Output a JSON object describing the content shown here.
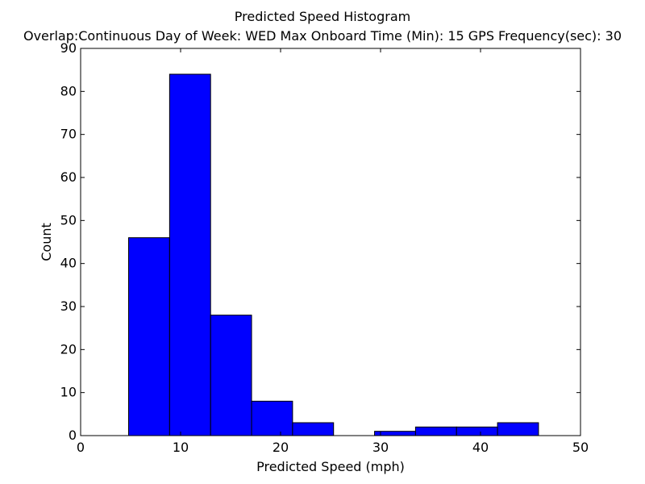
{
  "chart_data": {
    "type": "bar",
    "title": "Predicted Speed Histogram",
    "subtitle": "Overlap:Continuous    Day of Week: WED    Max Onboard Time (Min): 15    GPS Frequency(sec): 30",
    "xlabel": "Predicted Speed (mph)",
    "ylabel": "Count",
    "xlim": [
      0,
      50
    ],
    "ylim": [
      0,
      90
    ],
    "xticks": [
      0,
      10,
      20,
      30,
      40,
      50
    ],
    "yticks": [
      0,
      10,
      20,
      30,
      40,
      50,
      60,
      70,
      80,
      90
    ],
    "bin_edges": [
      4.8,
      8.9,
      13.0,
      17.1,
      21.2,
      25.3,
      29.4,
      33.5,
      37.6,
      41.7,
      45.8
    ],
    "counts": [
      46,
      84,
      28,
      8,
      3,
      0,
      1,
      2,
      2,
      3
    ],
    "bar_color": "#0000ff",
    "edge_color": "#000000",
    "grid": false,
    "legend": "none"
  }
}
